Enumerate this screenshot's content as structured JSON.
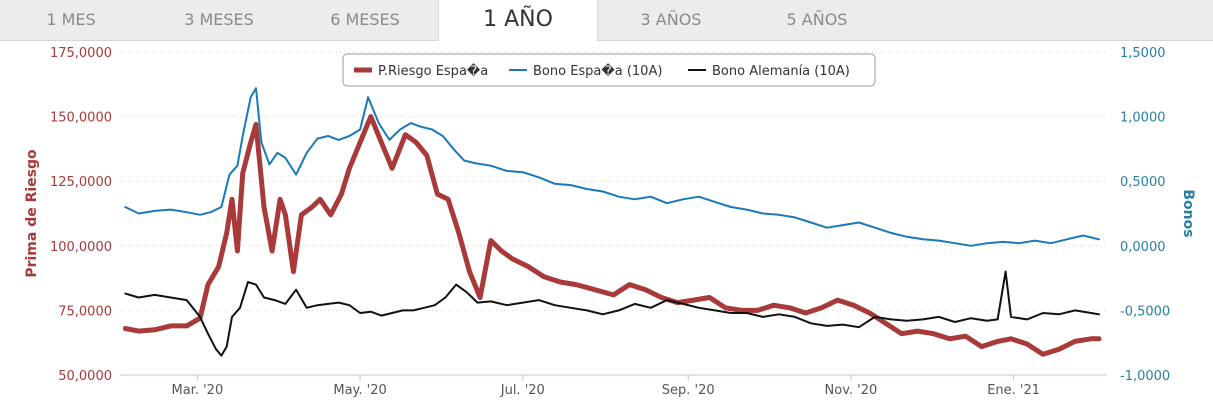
{
  "tabs": [
    {
      "label": "1 MES"
    },
    {
      "label": "3 MESES"
    },
    {
      "label": "6 MESES"
    },
    {
      "label": "1 AÑO",
      "active": true
    },
    {
      "label": "3 AÑOS"
    },
    {
      "label": "5 AÑOS"
    }
  ],
  "colors": {
    "risk": "#a83a3a",
    "spain": "#1a7ab8",
    "germany": "#111111",
    "left_axis": "#a83a3a",
    "right_axis": "#2a7fa3"
  },
  "chart_data": {
    "type": "line",
    "title": "",
    "ylabel_left": "Prima de Riesgo",
    "ylabel_right": "Bonos",
    "ylim_left": [
      50000,
      175000
    ],
    "ylim_right": [
      -1.0,
      1.5
    ],
    "yticks_left": [
      "50,0000",
      "75,0000",
      "100,0000",
      "125,0000",
      "150,0000",
      "175,0000"
    ],
    "yticks_right": [
      "-1,0000",
      "-0,5000",
      "0,0000",
      "0,5000",
      "1,0000",
      "1,5000"
    ],
    "xticks": [
      {
        "label": "Mar. '20",
        "date": "2020-03-01"
      },
      {
        "label": "May. '20",
        "date": "2020-05-01"
      },
      {
        "label": "Jul. '20",
        "date": "2020-07-01"
      },
      {
        "label": "Sep. '20",
        "date": "2020-09-01"
      },
      {
        "label": "Nov. '20",
        "date": "2020-11-01"
      },
      {
        "label": "Ene. '21",
        "date": "2021-01-01"
      }
    ],
    "xlim": [
      "2020-02-01",
      "2021-02-05"
    ],
    "grid": true,
    "legend_position": "top-center",
    "series": [
      {
        "name": "P.Riesgo Espa�a",
        "axis": "left",
        "color": "#a83a3a",
        "points": [
          [
            "2020-02-03",
            68000
          ],
          [
            "2020-02-08",
            67000
          ],
          [
            "2020-02-14",
            67500
          ],
          [
            "2020-02-20",
            69000
          ],
          [
            "2020-02-26",
            69000
          ],
          [
            "2020-03-02",
            72000
          ],
          [
            "2020-03-05",
            85000
          ],
          [
            "2020-03-09",
            92000
          ],
          [
            "2020-03-12",
            105000
          ],
          [
            "2020-03-14",
            118000
          ],
          [
            "2020-03-16",
            98000
          ],
          [
            "2020-03-18",
            128000
          ],
          [
            "2020-03-21",
            140000
          ],
          [
            "2020-03-23",
            147000
          ],
          [
            "2020-03-26",
            115000
          ],
          [
            "2020-03-29",
            98000
          ],
          [
            "2020-04-01",
            118000
          ],
          [
            "2020-04-03",
            112000
          ],
          [
            "2020-04-06",
            90000
          ],
          [
            "2020-04-09",
            112000
          ],
          [
            "2020-04-13",
            115000
          ],
          [
            "2020-04-16",
            118000
          ],
          [
            "2020-04-20",
            112000
          ],
          [
            "2020-04-24",
            120000
          ],
          [
            "2020-04-27",
            130000
          ],
          [
            "2020-05-01",
            140000
          ],
          [
            "2020-05-05",
            150000
          ],
          [
            "2020-05-09",
            140000
          ],
          [
            "2020-05-13",
            130000
          ],
          [
            "2020-05-18",
            143000
          ],
          [
            "2020-05-22",
            140000
          ],
          [
            "2020-05-26",
            135000
          ],
          [
            "2020-05-30",
            120000
          ],
          [
            "2020-06-03",
            118000
          ],
          [
            "2020-06-07",
            105000
          ],
          [
            "2020-06-11",
            90000
          ],
          [
            "2020-06-15",
            80000
          ],
          [
            "2020-06-19",
            102000
          ],
          [
            "2020-06-23",
            98000
          ],
          [
            "2020-06-27",
            95000
          ],
          [
            "2020-07-03",
            92000
          ],
          [
            "2020-07-09",
            88000
          ],
          [
            "2020-07-15",
            86000
          ],
          [
            "2020-07-21",
            85000
          ],
          [
            "2020-07-28",
            83000
          ],
          [
            "2020-08-04",
            81000
          ],
          [
            "2020-08-10",
            85000
          ],
          [
            "2020-08-16",
            83000
          ],
          [
            "2020-08-22",
            80000
          ],
          [
            "2020-08-28",
            78000
          ],
          [
            "2020-09-03",
            79000
          ],
          [
            "2020-09-09",
            80000
          ],
          [
            "2020-09-15",
            76000
          ],
          [
            "2020-09-21",
            75000
          ],
          [
            "2020-09-27",
            75000
          ],
          [
            "2020-10-03",
            77000
          ],
          [
            "2020-10-09",
            76000
          ],
          [
            "2020-10-15",
            74000
          ],
          [
            "2020-10-21",
            76000
          ],
          [
            "2020-10-27",
            79000
          ],
          [
            "2020-11-02",
            77000
          ],
          [
            "2020-11-08",
            74000
          ],
          [
            "2020-11-14",
            70000
          ],
          [
            "2020-11-20",
            66000
          ],
          [
            "2020-11-26",
            67000
          ],
          [
            "2020-12-02",
            66000
          ],
          [
            "2020-12-08",
            64000
          ],
          [
            "2020-12-14",
            65000
          ],
          [
            "2020-12-20",
            61000
          ],
          [
            "2020-12-26",
            63000
          ],
          [
            "2020-12-31",
            64000
          ],
          [
            "2021-01-06",
            62000
          ],
          [
            "2021-01-12",
            58000
          ],
          [
            "2021-01-18",
            60000
          ],
          [
            "2021-01-24",
            63000
          ],
          [
            "2021-01-30",
            64000
          ],
          [
            "2021-02-02",
            64000
          ]
        ]
      },
      {
        "name": "Bono Espa�a (10A)",
        "axis": "right",
        "color": "#1a7ab8",
        "points": [
          [
            "2020-02-03",
            0.3
          ],
          [
            "2020-02-08",
            0.25
          ],
          [
            "2020-02-14",
            0.27
          ],
          [
            "2020-02-20",
            0.28
          ],
          [
            "2020-02-26",
            0.26
          ],
          [
            "2020-03-02",
            0.24
          ],
          [
            "2020-03-06",
            0.26
          ],
          [
            "2020-03-10",
            0.3
          ],
          [
            "2020-03-13",
            0.55
          ],
          [
            "2020-03-16",
            0.62
          ],
          [
            "2020-03-18",
            0.85
          ],
          [
            "2020-03-21",
            1.15
          ],
          [
            "2020-03-23",
            1.22
          ],
          [
            "2020-03-25",
            0.8
          ],
          [
            "2020-03-28",
            0.63
          ],
          [
            "2020-03-31",
            0.72
          ],
          [
            "2020-04-03",
            0.68
          ],
          [
            "2020-04-07",
            0.55
          ],
          [
            "2020-04-11",
            0.72
          ],
          [
            "2020-04-15",
            0.83
          ],
          [
            "2020-04-19",
            0.85
          ],
          [
            "2020-04-23",
            0.82
          ],
          [
            "2020-04-27",
            0.85
          ],
          [
            "2020-05-01",
            0.9
          ],
          [
            "2020-05-04",
            1.15
          ],
          [
            "2020-05-08",
            0.95
          ],
          [
            "2020-05-12",
            0.82
          ],
          [
            "2020-05-16",
            0.9
          ],
          [
            "2020-05-20",
            0.95
          ],
          [
            "2020-05-24",
            0.92
          ],
          [
            "2020-05-28",
            0.9
          ],
          [
            "2020-06-01",
            0.85
          ],
          [
            "2020-06-05",
            0.75
          ],
          [
            "2020-06-09",
            0.66
          ],
          [
            "2020-06-13",
            0.64
          ],
          [
            "2020-06-19",
            0.62
          ],
          [
            "2020-06-25",
            0.58
          ],
          [
            "2020-07-01",
            0.57
          ],
          [
            "2020-07-07",
            0.53
          ],
          [
            "2020-07-13",
            0.48
          ],
          [
            "2020-07-19",
            0.47
          ],
          [
            "2020-07-25",
            0.44
          ],
          [
            "2020-07-31",
            0.42
          ],
          [
            "2020-08-06",
            0.38
          ],
          [
            "2020-08-12",
            0.36
          ],
          [
            "2020-08-18",
            0.38
          ],
          [
            "2020-08-24",
            0.33
          ],
          [
            "2020-08-30",
            0.36
          ],
          [
            "2020-09-05",
            0.38
          ],
          [
            "2020-09-11",
            0.34
          ],
          [
            "2020-09-17",
            0.3
          ],
          [
            "2020-09-23",
            0.28
          ],
          [
            "2020-09-29",
            0.25
          ],
          [
            "2020-10-05",
            0.24
          ],
          [
            "2020-10-11",
            0.22
          ],
          [
            "2020-10-17",
            0.18
          ],
          [
            "2020-10-23",
            0.14
          ],
          [
            "2020-10-29",
            0.16
          ],
          [
            "2020-11-04",
            0.18
          ],
          [
            "2020-11-10",
            0.14
          ],
          [
            "2020-11-16",
            0.1
          ],
          [
            "2020-11-22",
            0.07
          ],
          [
            "2020-11-28",
            0.05
          ],
          [
            "2020-12-04",
            0.04
          ],
          [
            "2020-12-10",
            0.02
          ],
          [
            "2020-12-16",
            0.0
          ],
          [
            "2020-12-22",
            0.02
          ],
          [
            "2020-12-28",
            0.03
          ],
          [
            "2021-01-03",
            0.02
          ],
          [
            "2021-01-09",
            0.04
          ],
          [
            "2021-01-15",
            0.02
          ],
          [
            "2021-01-21",
            0.05
          ],
          [
            "2021-01-27",
            0.08
          ],
          [
            "2021-02-02",
            0.05
          ]
        ]
      },
      {
        "name": "Bono Alemanía (10A)",
        "axis": "right",
        "color": "#111111",
        "points": [
          [
            "2020-02-03",
            -0.37
          ],
          [
            "2020-02-08",
            -0.4
          ],
          [
            "2020-02-14",
            -0.38
          ],
          [
            "2020-02-20",
            -0.4
          ],
          [
            "2020-02-26",
            -0.42
          ],
          [
            "2020-03-02",
            -0.55
          ],
          [
            "2020-03-05",
            -0.68
          ],
          [
            "2020-03-08",
            -0.8
          ],
          [
            "2020-03-10",
            -0.85
          ],
          [
            "2020-03-12",
            -0.78
          ],
          [
            "2020-03-14",
            -0.55
          ],
          [
            "2020-03-17",
            -0.48
          ],
          [
            "2020-03-20",
            -0.28
          ],
          [
            "2020-03-23",
            -0.3
          ],
          [
            "2020-03-26",
            -0.4
          ],
          [
            "2020-03-30",
            -0.42
          ],
          [
            "2020-04-03",
            -0.45
          ],
          [
            "2020-04-07",
            -0.34
          ],
          [
            "2020-04-11",
            -0.48
          ],
          [
            "2020-04-15",
            -0.46
          ],
          [
            "2020-04-19",
            -0.45
          ],
          [
            "2020-04-23",
            -0.44
          ],
          [
            "2020-04-27",
            -0.46
          ],
          [
            "2020-05-01",
            -0.52
          ],
          [
            "2020-05-05",
            -0.51
          ],
          [
            "2020-05-09",
            -0.54
          ],
          [
            "2020-05-13",
            -0.52
          ],
          [
            "2020-05-17",
            -0.5
          ],
          [
            "2020-05-21",
            -0.5
          ],
          [
            "2020-05-25",
            -0.48
          ],
          [
            "2020-05-29",
            -0.46
          ],
          [
            "2020-06-02",
            -0.4
          ],
          [
            "2020-06-06",
            -0.3
          ],
          [
            "2020-06-10",
            -0.36
          ],
          [
            "2020-06-14",
            -0.44
          ],
          [
            "2020-06-19",
            -0.43
          ],
          [
            "2020-06-25",
            -0.46
          ],
          [
            "2020-07-01",
            -0.44
          ],
          [
            "2020-07-07",
            -0.42
          ],
          [
            "2020-07-13",
            -0.46
          ],
          [
            "2020-07-19",
            -0.48
          ],
          [
            "2020-07-25",
            -0.5
          ],
          [
            "2020-07-31",
            -0.53
          ],
          [
            "2020-08-06",
            -0.5
          ],
          [
            "2020-08-12",
            -0.45
          ],
          [
            "2020-08-18",
            -0.48
          ],
          [
            "2020-08-24",
            -0.42
          ],
          [
            "2020-08-30",
            -0.45
          ],
          [
            "2020-09-05",
            -0.48
          ],
          [
            "2020-09-11",
            -0.5
          ],
          [
            "2020-09-17",
            -0.52
          ],
          [
            "2020-09-23",
            -0.52
          ],
          [
            "2020-09-29",
            -0.55
          ],
          [
            "2020-10-05",
            -0.53
          ],
          [
            "2020-10-11",
            -0.55
          ],
          [
            "2020-10-17",
            -0.6
          ],
          [
            "2020-10-23",
            -0.62
          ],
          [
            "2020-10-29",
            -0.61
          ],
          [
            "2020-11-04",
            -0.63
          ],
          [
            "2020-11-10",
            -0.55
          ],
          [
            "2020-11-16",
            -0.57
          ],
          [
            "2020-11-22",
            -0.58
          ],
          [
            "2020-11-28",
            -0.57
          ],
          [
            "2020-12-04",
            -0.55
          ],
          [
            "2020-12-10",
            -0.59
          ],
          [
            "2020-12-16",
            -0.56
          ],
          [
            "2020-12-22",
            -0.58
          ],
          [
            "2020-12-26",
            -0.57
          ],
          [
            "2020-12-29",
            -0.2
          ],
          [
            "2020-12-31",
            -0.55
          ],
          [
            "2021-01-06",
            -0.57
          ],
          [
            "2021-01-12",
            -0.52
          ],
          [
            "2021-01-18",
            -0.53
          ],
          [
            "2021-01-24",
            -0.5
          ],
          [
            "2021-01-30",
            -0.52
          ],
          [
            "2021-02-02",
            -0.53
          ]
        ]
      }
    ]
  }
}
